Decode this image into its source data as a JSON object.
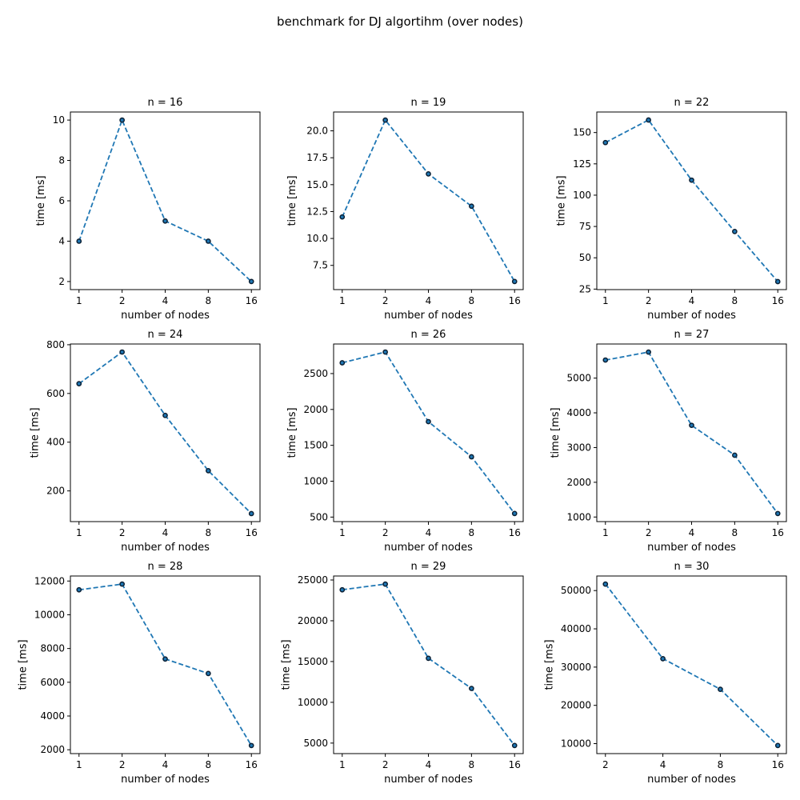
{
  "figure": {
    "title": "benchmark for DJ algortihm (over nodes)"
  },
  "colors": {
    "line": "#1f77b4",
    "marker_edge": "#0b1f33"
  },
  "chart_data": [
    {
      "type": "line",
      "title": "n = 16",
      "xlabel": "number of nodes",
      "ylabel": "time [ms]",
      "x": [
        1,
        2,
        4,
        8,
        16
      ],
      "xscale": "log2",
      "y": [
        4,
        10,
        5,
        4,
        2
      ],
      "ylim": [
        1.6,
        10.4
      ],
      "yticks": [
        "2",
        "4",
        "6",
        "8",
        "10"
      ],
      "ytick_values": [
        2,
        4,
        6,
        8,
        10
      ],
      "xticks": [
        "1",
        "2",
        "4",
        "8",
        "16"
      ],
      "grid": false,
      "legend": false
    },
    {
      "type": "line",
      "title": "n = 19",
      "xlabel": "number of nodes",
      "ylabel": "time [ms]",
      "x": [
        1,
        2,
        4,
        8,
        16
      ],
      "xscale": "log2",
      "y": [
        12,
        21,
        16,
        13,
        6
      ],
      "ylim": [
        5.25,
        21.75
      ],
      "yticks": [
        "7.5",
        "10.0",
        "12.5",
        "15.0",
        "17.5",
        "20.0"
      ],
      "ytick_values": [
        7.5,
        10,
        12.5,
        15,
        17.5,
        20
      ],
      "xticks": [
        "1",
        "2",
        "4",
        "8",
        "16"
      ],
      "grid": false,
      "legend": false
    },
    {
      "type": "line",
      "title": "n = 22",
      "xlabel": "number of nodes",
      "ylabel": "time [ms]",
      "x": [
        1,
        2,
        4,
        8,
        16
      ],
      "xscale": "log2",
      "y": [
        142,
        160,
        112,
        71,
        31
      ],
      "ylim": [
        24.6,
        166.4
      ],
      "yticks": [
        "25",
        "50",
        "75",
        "100",
        "125",
        "150"
      ],
      "ytick_values": [
        25,
        50,
        75,
        100,
        125,
        150
      ],
      "xticks": [
        "1",
        "2",
        "4",
        "8",
        "16"
      ],
      "grid": false,
      "legend": false
    },
    {
      "type": "line",
      "title": "n = 24",
      "xlabel": "number of nodes",
      "ylabel": "time [ms]",
      "x": [
        1,
        2,
        4,
        8,
        16
      ],
      "xscale": "log2",
      "y": [
        640,
        770,
        510,
        283,
        107
      ],
      "ylim": [
        74,
        803
      ],
      "yticks": [
        "200",
        "400",
        "600",
        "800"
      ],
      "ytick_values": [
        200,
        400,
        600,
        800
      ],
      "xticks": [
        "1",
        "2",
        "4",
        "8",
        "16"
      ],
      "grid": false,
      "legend": false
    },
    {
      "type": "line",
      "title": "n = 26",
      "xlabel": "number of nodes",
      "ylabel": "time [ms]",
      "x": [
        1,
        2,
        4,
        8,
        16
      ],
      "xscale": "log2",
      "y": [
        2650,
        2800,
        1830,
        1340,
        550
      ],
      "ylim": [
        437,
        2912
      ],
      "yticks": [
        "500",
        "1000",
        "1500",
        "2000",
        "2500"
      ],
      "ytick_values": [
        500,
        1000,
        1500,
        2000,
        2500
      ],
      "xticks": [
        "1",
        "2",
        "4",
        "8",
        "16"
      ],
      "grid": false,
      "legend": false
    },
    {
      "type": "line",
      "title": "n = 27",
      "xlabel": "number of nodes",
      "ylabel": "time [ms]",
      "x": [
        1,
        2,
        4,
        8,
        16
      ],
      "xscale": "log2",
      "y": [
        5520,
        5750,
        3640,
        2780,
        1100
      ],
      "ylim": [
        868,
        5982
      ],
      "yticks": [
        "1000",
        "2000",
        "3000",
        "4000",
        "5000"
      ],
      "ytick_values": [
        1000,
        2000,
        3000,
        4000,
        5000
      ],
      "xticks": [
        "1",
        "2",
        "4",
        "8",
        "16"
      ],
      "grid": false,
      "legend": false
    },
    {
      "type": "line",
      "title": "n = 28",
      "xlabel": "number of nodes",
      "ylabel": "time [ms]",
      "x": [
        1,
        2,
        4,
        8,
        16
      ],
      "xscale": "log2",
      "y": [
        11480,
        11820,
        7380,
        6520,
        2250
      ],
      "ylim": [
        1772,
        12298
      ],
      "yticks": [
        "2000",
        "4000",
        "6000",
        "8000",
        "10000",
        "12000"
      ],
      "ytick_values": [
        2000,
        4000,
        6000,
        8000,
        10000,
        12000
      ],
      "xticks": [
        "1",
        "2",
        "4",
        "8",
        "16"
      ],
      "grid": false,
      "legend": false
    },
    {
      "type": "line",
      "title": "n = 29",
      "xlabel": "number of nodes",
      "ylabel": "time [ms]",
      "x": [
        1,
        2,
        4,
        8,
        16
      ],
      "xscale": "log2",
      "y": [
        23800,
        24500,
        15400,
        11700,
        4700
      ],
      "ylim": [
        3710,
        25490
      ],
      "yticks": [
        "5000",
        "10000",
        "15000",
        "20000",
        "25000"
      ],
      "ytick_values": [
        5000,
        10000,
        15000,
        20000,
        25000
      ],
      "xticks": [
        "1",
        "2",
        "4",
        "8",
        "16"
      ],
      "grid": false,
      "legend": false
    },
    {
      "type": "line",
      "title": "n = 30",
      "xlabel": "number of nodes",
      "ylabel": "time [ms]",
      "x": [
        2,
        4,
        8,
        16
      ],
      "xscale": "log2",
      "y": [
        51700,
        32200,
        24200,
        9500
      ],
      "ylim": [
        7390,
        53810
      ],
      "yticks": [
        "10000",
        "20000",
        "30000",
        "40000",
        "50000"
      ],
      "ytick_values": [
        10000,
        20000,
        30000,
        40000,
        50000
      ],
      "xticks": [
        "2",
        "4",
        "8",
        "16"
      ],
      "grid": false,
      "legend": false
    }
  ]
}
